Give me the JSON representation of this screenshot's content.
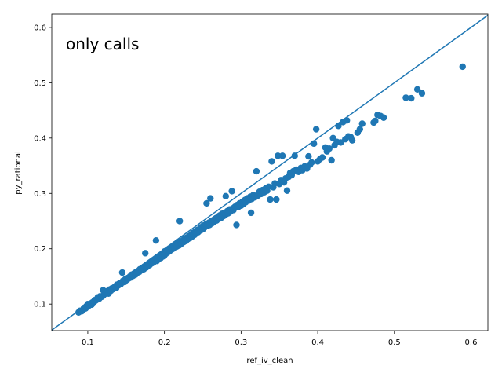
{
  "chart_data": {
    "type": "scatter",
    "xlabel": "ref_iv_clean",
    "ylabel": "py_rational",
    "xlim": [
      0.053,
      0.622
    ],
    "ylim": [
      0.052,
      0.624
    ],
    "xticks": [
      0.1,
      0.2,
      0.3,
      0.4,
      0.5,
      0.6
    ],
    "yticks": [
      0.1,
      0.2,
      0.3,
      0.4,
      0.5,
      0.6
    ],
    "xtick_labels": [
      "0.1",
      "0.2",
      "0.3",
      "0.4",
      "0.5",
      "0.6"
    ],
    "ytick_labels": [
      "0.1",
      "0.2",
      "0.3",
      "0.4",
      "0.5",
      "0.6"
    ],
    "grid": false,
    "annotation": {
      "text": "only calls",
      "color": "#8b1a2b"
    },
    "reference_line": {
      "type": "y=x",
      "color": "#1f77b4"
    },
    "series": [
      {
        "color": "#1f77b4",
        "points": [
          [
            0.088,
            0.085
          ],
          [
            0.09,
            0.088
          ],
          [
            0.092,
            0.087
          ],
          [
            0.094,
            0.09
          ],
          [
            0.095,
            0.093
          ],
          [
            0.097,
            0.092
          ],
          [
            0.098,
            0.096
          ],
          [
            0.1,
            0.095
          ],
          [
            0.1,
            0.1
          ],
          [
            0.102,
            0.098
          ],
          [
            0.104,
            0.101
          ],
          [
            0.105,
            0.099
          ],
          [
            0.106,
            0.103
          ],
          [
            0.108,
            0.104
          ],
          [
            0.109,
            0.107
          ],
          [
            0.11,
            0.106
          ],
          [
            0.112,
            0.108
          ],
          [
            0.113,
            0.112
          ],
          [
            0.115,
            0.11
          ],
          [
            0.116,
            0.114
          ],
          [
            0.118,
            0.113
          ],
          [
            0.12,
            0.115
          ],
          [
            0.12,
            0.125
          ],
          [
            0.122,
            0.118
          ],
          [
            0.124,
            0.12
          ],
          [
            0.125,
            0.123
          ],
          [
            0.127,
            0.119
          ],
          [
            0.128,
            0.126
          ],
          [
            0.13,
            0.124
          ],
          [
            0.131,
            0.128
          ],
          [
            0.133,
            0.127
          ],
          [
            0.134,
            0.13
          ],
          [
            0.136,
            0.132
          ],
          [
            0.137,
            0.129
          ],
          [
            0.138,
            0.135
          ],
          [
            0.14,
            0.134
          ],
          [
            0.141,
            0.137
          ],
          [
            0.143,
            0.136
          ],
          [
            0.144,
            0.139
          ],
          [
            0.145,
            0.157
          ],
          [
            0.146,
            0.142
          ],
          [
            0.148,
            0.14
          ],
          [
            0.149,
            0.145
          ],
          [
            0.15,
            0.143
          ],
          [
            0.152,
            0.147
          ],
          [
            0.153,
            0.146
          ],
          [
            0.155,
            0.15
          ],
          [
            0.156,
            0.148
          ],
          [
            0.157,
            0.153
          ],
          [
            0.159,
            0.151
          ],
          [
            0.16,
            0.155
          ],
          [
            0.162,
            0.153
          ],
          [
            0.163,
            0.158
          ],
          [
            0.164,
            0.156
          ],
          [
            0.166,
            0.16
          ],
          [
            0.167,
            0.158
          ],
          [
            0.168,
            0.163
          ],
          [
            0.17,
            0.161
          ],
          [
            0.171,
            0.165
          ],
          [
            0.173,
            0.163
          ],
          [
            0.174,
            0.168
          ],
          [
            0.175,
            0.192
          ],
          [
            0.176,
            0.166
          ],
          [
            0.177,
            0.171
          ],
          [
            0.178,
            0.168
          ],
          [
            0.18,
            0.174
          ],
          [
            0.181,
            0.171
          ],
          [
            0.182,
            0.176
          ],
          [
            0.184,
            0.174
          ],
          [
            0.185,
            0.179
          ],
          [
            0.186,
            0.176
          ],
          [
            0.188,
            0.181
          ],
          [
            0.189,
            0.215
          ],
          [
            0.19,
            0.178
          ],
          [
            0.19,
            0.184
          ],
          [
            0.192,
            0.181
          ],
          [
            0.193,
            0.186
          ],
          [
            0.195,
            0.183
          ],
          [
            0.196,
            0.189
          ],
          [
            0.198,
            0.186
          ],
          [
            0.199,
            0.191
          ],
          [
            0.2,
            0.188
          ],
          [
            0.2,
            0.195
          ],
          [
            0.202,
            0.191
          ],
          [
            0.203,
            0.197
          ],
          [
            0.205,
            0.194
          ],
          [
            0.206,
            0.2
          ],
          [
            0.207,
            0.196
          ],
          [
            0.209,
            0.202
          ],
          [
            0.21,
            0.199
          ],
          [
            0.212,
            0.205
          ],
          [
            0.213,
            0.201
          ],
          [
            0.214,
            0.208
          ],
          [
            0.216,
            0.204
          ],
          [
            0.217,
            0.21
          ],
          [
            0.219,
            0.206
          ],
          [
            0.22,
            0.25
          ],
          [
            0.221,
            0.213
          ],
          [
            0.222,
            0.209
          ],
          [
            0.224,
            0.215
          ],
          [
            0.225,
            0.212
          ],
          [
            0.226,
            0.218
          ],
          [
            0.228,
            0.214
          ],
          [
            0.229,
            0.22
          ],
          [
            0.23,
            0.217
          ],
          [
            0.232,
            0.223
          ],
          [
            0.233,
            0.219
          ],
          [
            0.235,
            0.226
          ],
          [
            0.236,
            0.222
          ],
          [
            0.237,
            0.228
          ],
          [
            0.239,
            0.225
          ],
          [
            0.24,
            0.231
          ],
          [
            0.241,
            0.227
          ],
          [
            0.243,
            0.234
          ],
          [
            0.244,
            0.23
          ],
          [
            0.246,
            0.236
          ],
          [
            0.247,
            0.233
          ],
          [
            0.248,
            0.239
          ],
          [
            0.25,
            0.235
          ],
          [
            0.251,
            0.242
          ],
          [
            0.252,
            0.238
          ],
          [
            0.254,
            0.244
          ],
          [
            0.255,
            0.282
          ],
          [
            0.256,
            0.241
          ],
          [
            0.258,
            0.247
          ],
          [
            0.259,
            0.243
          ],
          [
            0.26,
            0.291
          ],
          [
            0.261,
            0.25
          ],
          [
            0.262,
            0.246
          ],
          [
            0.264,
            0.252
          ],
          [
            0.265,
            0.249
          ],
          [
            0.267,
            0.255
          ],
          [
            0.268,
            0.251
          ],
          [
            0.27,
            0.258
          ],
          [
            0.271,
            0.254
          ],
          [
            0.272,
            0.26
          ],
          [
            0.274,
            0.256
          ],
          [
            0.275,
            0.263
          ],
          [
            0.277,
            0.259
          ],
          [
            0.278,
            0.265
          ],
          [
            0.28,
            0.262
          ],
          [
            0.28,
            0.295
          ],
          [
            0.282,
            0.268
          ],
          [
            0.283,
            0.264
          ],
          [
            0.285,
            0.271
          ],
          [
            0.286,
            0.267
          ],
          [
            0.288,
            0.304
          ],
          [
            0.289,
            0.273
          ],
          [
            0.29,
            0.27
          ],
          [
            0.292,
            0.276
          ],
          [
            0.294,
            0.243
          ],
          [
            0.295,
            0.279
          ],
          [
            0.296,
            0.275
          ],
          [
            0.298,
            0.282
          ],
          [
            0.3,
            0.278
          ],
          [
            0.302,
            0.285
          ],
          [
            0.303,
            0.281
          ],
          [
            0.305,
            0.288
          ],
          [
            0.306,
            0.284
          ],
          [
            0.308,
            0.291
          ],
          [
            0.31,
            0.287
          ],
          [
            0.312,
            0.294
          ],
          [
            0.313,
            0.265
          ],
          [
            0.314,
            0.29
          ],
          [
            0.316,
            0.297
          ],
          [
            0.318,
            0.293
          ],
          [
            0.32,
            0.34
          ],
          [
            0.322,
            0.296
          ],
          [
            0.324,
            0.303
          ],
          [
            0.326,
            0.299
          ],
          [
            0.328,
            0.306
          ],
          [
            0.33,
            0.302
          ],
          [
            0.332,
            0.309
          ],
          [
            0.334,
            0.305
          ],
          [
            0.336,
            0.312
          ],
          [
            0.338,
            0.289
          ],
          [
            0.34,
            0.358
          ],
          [
            0.342,
            0.311
          ],
          [
            0.344,
            0.318
          ],
          [
            0.346,
            0.289
          ],
          [
            0.348,
            0.368
          ],
          [
            0.35,
            0.317
          ],
          [
            0.352,
            0.324
          ],
          [
            0.354,
            0.368
          ],
          [
            0.356,
            0.32
          ],
          [
            0.358,
            0.327
          ],
          [
            0.36,
            0.305
          ],
          [
            0.362,
            0.33
          ],
          [
            0.364,
            0.337
          ],
          [
            0.366,
            0.333
          ],
          [
            0.368,
            0.34
          ],
          [
            0.37,
            0.368
          ],
          [
            0.372,
            0.343
          ],
          [
            0.375,
            0.339
          ],
          [
            0.378,
            0.346
          ],
          [
            0.38,
            0.342
          ],
          [
            0.383,
            0.349
          ],
          [
            0.386,
            0.345
          ],
          [
            0.388,
            0.367
          ],
          [
            0.39,
            0.352
          ],
          [
            0.392,
            0.356
          ],
          [
            0.395,
            0.39
          ],
          [
            0.398,
            0.416
          ],
          [
            0.4,
            0.358
          ],
          [
            0.403,
            0.362
          ],
          [
            0.406,
            0.365
          ],
          [
            0.41,
            0.383
          ],
          [
            0.412,
            0.376
          ],
          [
            0.415,
            0.381
          ],
          [
            0.418,
            0.36
          ],
          [
            0.42,
            0.4
          ],
          [
            0.422,
            0.387
          ],
          [
            0.425,
            0.393
          ],
          [
            0.427,
            0.422
          ],
          [
            0.43,
            0.392
          ],
          [
            0.433,
            0.429
          ],
          [
            0.436,
            0.398
          ],
          [
            0.438,
            0.432
          ],
          [
            0.44,
            0.403
          ],
          [
            0.443,
            0.402
          ],
          [
            0.445,
            0.396
          ],
          [
            0.452,
            0.41
          ],
          [
            0.455,
            0.416
          ],
          [
            0.458,
            0.426
          ],
          [
            0.473,
            0.428
          ],
          [
            0.475,
            0.431
          ],
          [
            0.478,
            0.442
          ],
          [
            0.482,
            0.44
          ],
          [
            0.486,
            0.437
          ],
          [
            0.515,
            0.473
          ],
          [
            0.522,
            0.472
          ],
          [
            0.53,
            0.488
          ],
          [
            0.536,
            0.481
          ],
          [
            0.589,
            0.529
          ]
        ]
      }
    ]
  }
}
